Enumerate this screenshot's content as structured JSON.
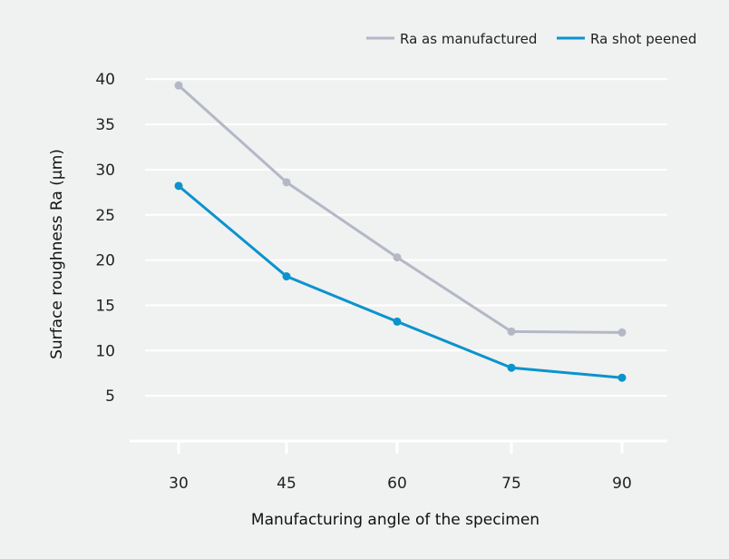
{
  "chart_data": {
    "type": "line",
    "title": "",
    "xlabel": "Manufacturing angle of the specimen",
    "ylabel": "Surface roughness Ra (µm)",
    "x": [
      30,
      45,
      60,
      75,
      90
    ],
    "categories": [
      "30",
      "45",
      "60",
      "75",
      "90"
    ],
    "yticks": [
      5,
      10,
      15,
      20,
      25,
      30,
      35,
      40
    ],
    "ylim": [
      0,
      40
    ],
    "grid": true,
    "legend_position": "top-right",
    "series": [
      {
        "name": "Ra as manufactured",
        "color": "#b4b8c6",
        "values": [
          39.3,
          28.6,
          20.3,
          12.1,
          12.0
        ]
      },
      {
        "name": "Ra shot peened",
        "color": "#0b93cc",
        "values": [
          28.2,
          18.2,
          13.2,
          8.1,
          7.0
        ]
      }
    ]
  }
}
